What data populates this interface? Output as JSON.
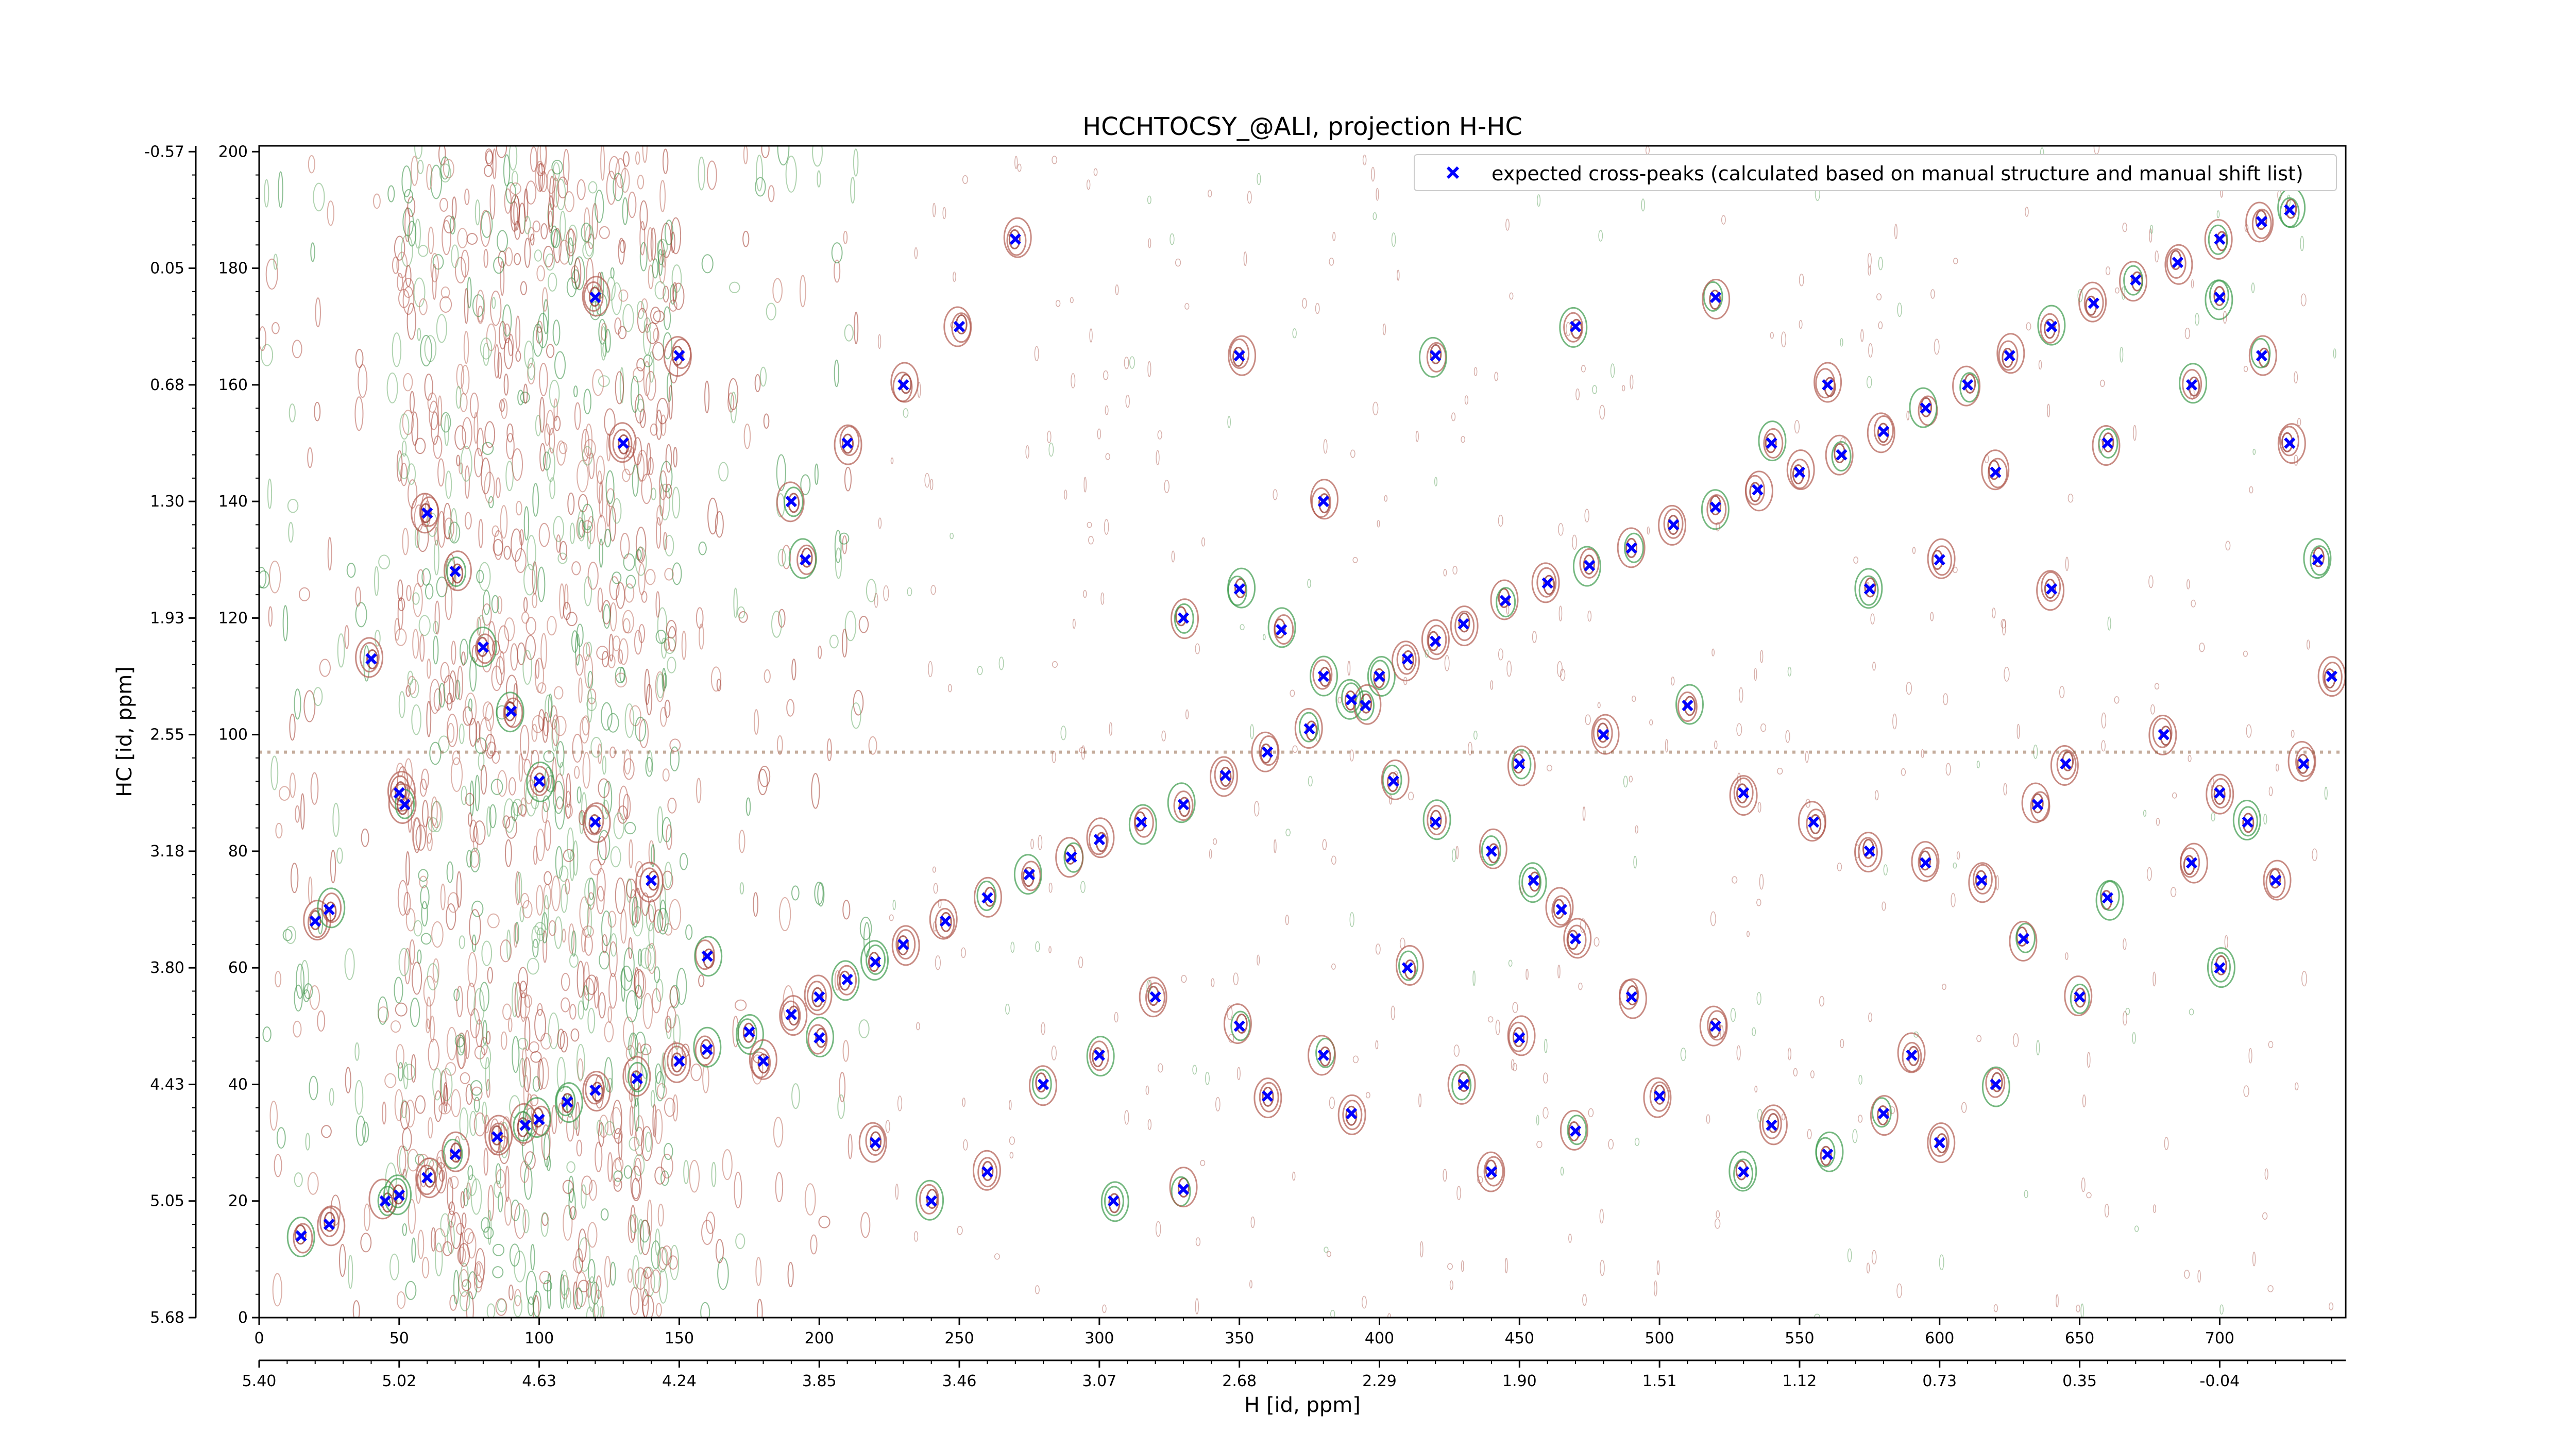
{
  "chart_data": {
    "type": "scatter",
    "title": "HCCHTOCSY_@ALI, projection H-HC",
    "xlabel": "H [id, ppm]",
    "ylabel": "HC [id, ppm]",
    "x_index_ticks": [
      "0",
      "50",
      "100",
      "150",
      "200",
      "250",
      "300",
      "350",
      "400",
      "450",
      "500",
      "550",
      "600",
      "650",
      "700"
    ],
    "x_ppm_ticks": [
      "5.40",
      "5.02",
      "4.63",
      "4.24",
      "3.85",
      "3.46",
      "3.07",
      "2.68",
      "2.29",
      "1.90",
      "1.51",
      "1.12",
      "0.73",
      "0.35",
      "-0.04"
    ],
    "y_index_ticks": [
      "0",
      "20",
      "40",
      "60",
      "80",
      "100",
      "120",
      "140",
      "160",
      "180",
      "200"
    ],
    "y_ppm_ticks": [
      "5.68",
      "5.05",
      "4.43",
      "3.80",
      "3.18",
      "2.55",
      "1.93",
      "1.30",
      "0.68",
      "0.05",
      "-0.57"
    ],
    "xlim": [
      0,
      745
    ],
    "ylim": [
      0,
      201
    ],
    "grid": false,
    "legend_position": "top-right",
    "series": [
      {
        "name": "expected cross-peaks (calculated based on manual structure and manual shift list)",
        "color": "#0000ff",
        "marker": "x",
        "points": [
          [
            15,
            14
          ],
          [
            25,
            16
          ],
          [
            45,
            20
          ],
          [
            50,
            21
          ],
          [
            60,
            24
          ],
          [
            70,
            28
          ],
          [
            85,
            31
          ],
          [
            95,
            33
          ],
          [
            100,
            34
          ],
          [
            110,
            37
          ],
          [
            120,
            39
          ],
          [
            135,
            41
          ],
          [
            150,
            44
          ],
          [
            160,
            46
          ],
          [
            175,
            49
          ],
          [
            190,
            52
          ],
          [
            200,
            55
          ],
          [
            210,
            58
          ],
          [
            220,
            61
          ],
          [
            230,
            64
          ],
          [
            245,
            68
          ],
          [
            260,
            72
          ],
          [
            275,
            76
          ],
          [
            290,
            79
          ],
          [
            300,
            82
          ],
          [
            315,
            85
          ],
          [
            330,
            88
          ],
          [
            345,
            93
          ],
          [
            360,
            97
          ],
          [
            375,
            101
          ],
          [
            390,
            106
          ],
          [
            400,
            110
          ],
          [
            410,
            113
          ],
          [
            420,
            116
          ],
          [
            430,
            119
          ],
          [
            445,
            123
          ],
          [
            460,
            126
          ],
          [
            475,
            129
          ],
          [
            490,
            132
          ],
          [
            505,
            136
          ],
          [
            520,
            139
          ],
          [
            535,
            142
          ],
          [
            550,
            145
          ],
          [
            565,
            148
          ],
          [
            580,
            152
          ],
          [
            595,
            156
          ],
          [
            610,
            160
          ],
          [
            625,
            165
          ],
          [
            640,
            170
          ],
          [
            655,
            174
          ],
          [
            670,
            178
          ],
          [
            685,
            181
          ],
          [
            700,
            185
          ],
          [
            715,
            188
          ],
          [
            725,
            190
          ],
          [
            20,
            68
          ],
          [
            25,
            70
          ],
          [
            50,
            90
          ],
          [
            52,
            88
          ],
          [
            40,
            113
          ],
          [
            120,
            175
          ],
          [
            190,
            140
          ],
          [
            195,
            130
          ],
          [
            210,
            150
          ],
          [
            230,
            160
          ],
          [
            250,
            170
          ],
          [
            270,
            185
          ],
          [
            350,
            165
          ],
          [
            380,
            140
          ],
          [
            420,
            165
          ],
          [
            470,
            170
          ],
          [
            520,
            175
          ],
          [
            540,
            150
          ],
          [
            560,
            160
          ],
          [
            575,
            125
          ],
          [
            600,
            130
          ],
          [
            620,
            145
          ],
          [
            640,
            125
          ],
          [
            660,
            150
          ],
          [
            680,
            100
          ],
          [
            700,
            90
          ],
          [
            720,
            75
          ],
          [
            700,
            60
          ],
          [
            650,
            55
          ],
          [
            620,
            40
          ],
          [
            600,
            30
          ],
          [
            580,
            35
          ],
          [
            560,
            28
          ],
          [
            530,
            25
          ],
          [
            520,
            50
          ],
          [
            490,
            55
          ],
          [
            470,
            65
          ],
          [
            450,
            48
          ],
          [
            430,
            40
          ],
          [
            410,
            60
          ],
          [
            380,
            45
          ],
          [
            350,
            50
          ],
          [
            320,
            55
          ],
          [
            300,
            45
          ],
          [
            280,
            40
          ],
          [
            260,
            25
          ],
          [
            240,
            20
          ],
          [
            220,
            30
          ],
          [
            200,
            48
          ],
          [
            180,
            44
          ],
          [
            160,
            62
          ],
          [
            140,
            75
          ],
          [
            120,
            85
          ],
          [
            100,
            92
          ],
          [
            90,
            104
          ],
          [
            80,
            115
          ],
          [
            70,
            128
          ],
          [
            60,
            138
          ],
          [
            130,
            150
          ],
          [
            150,
            165
          ],
          [
            305,
            20
          ],
          [
            330,
            22
          ],
          [
            360,
            38
          ],
          [
            390,
            35
          ],
          [
            440,
            25
          ],
          [
            470,
            32
          ],
          [
            500,
            38
          ],
          [
            540,
            33
          ],
          [
            590,
            45
          ],
          [
            630,
            65
          ],
          [
            660,
            72
          ],
          [
            690,
            78
          ],
          [
            710,
            85
          ],
          [
            730,
            95
          ],
          [
            740,
            110
          ],
          [
            735,
            130
          ],
          [
            725,
            150
          ],
          [
            715,
            165
          ],
          [
            700,
            175
          ],
          [
            690,
            160
          ],
          [
            450,
            95
          ],
          [
            480,
            100
          ],
          [
            510,
            105
          ],
          [
            530,
            90
          ],
          [
            555,
            85
          ],
          [
            575,
            80
          ],
          [
            595,
            78
          ],
          [
            615,
            75
          ],
          [
            635,
            88
          ],
          [
            645,
            95
          ],
          [
            330,
            120
          ],
          [
            350,
            125
          ],
          [
            365,
            118
          ],
          [
            380,
            110
          ],
          [
            395,
            105
          ],
          [
            405,
            92
          ],
          [
            420,
            85
          ],
          [
            440,
            80
          ],
          [
            455,
            75
          ],
          [
            465,
            70
          ]
        ]
      }
    ]
  }
}
